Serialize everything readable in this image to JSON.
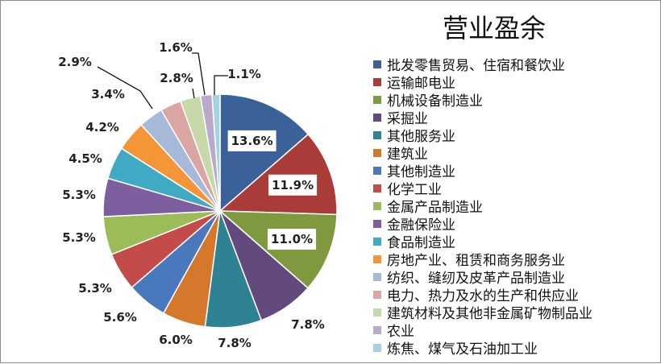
{
  "chart_data": {
    "type": "pie",
    "title": "营业盈余",
    "legend_position": "right",
    "slices": [
      {
        "label": "批发零售贸易、住宿和餐饮业",
        "value": 13.6,
        "display": "13.6%",
        "color": "#3a6198"
      },
      {
        "label": "运输邮电业",
        "value": 11.9,
        "display": "11.9%",
        "color": "#a93b39"
      },
      {
        "label": "机械设备制造业",
        "value": 11.0,
        "display": "11.0%",
        "color": "#7f9a3e"
      },
      {
        "label": "采掘业",
        "value": 7.8,
        "display": "7.8%",
        "color": "#624a7f"
      },
      {
        "label": "其他服务业",
        "value": 7.8,
        "display": "7.8%",
        "color": "#2f8294"
      },
      {
        "label": "建筑业",
        "value": 6.0,
        "display": "6.0%",
        "color": "#d6782b"
      },
      {
        "label": "其他制造业",
        "value": 5.6,
        "display": "5.6%",
        "color": "#4978bc"
      },
      {
        "label": "化学工业",
        "value": 5.3,
        "display": "5.3%",
        "color": "#c34c4a"
      },
      {
        "label": "金属产品制造业",
        "value": 5.3,
        "display": "5.3%",
        "color": "#9bbc59"
      },
      {
        "label": "金融保险业",
        "value": 5.3,
        "display": "5.3%",
        "color": "#7d5fa0"
      },
      {
        "label": "食品制造业",
        "value": 4.5,
        "display": "4.5%",
        "color": "#40aac5"
      },
      {
        "label": "房地产业、租赁和商务服务业",
        "value": 4.2,
        "display": "4.2%",
        "color": "#f49638"
      },
      {
        "label": "纺织、缝纫及皮革产品制造业",
        "value": 3.4,
        "display": "3.4%",
        "color": "#a6b9d9"
      },
      {
        "label": "电力、热力及水的生产和供应业",
        "value": 2.9,
        "display": "2.9%",
        "color": "#dba5a3"
      },
      {
        "label": "建筑材料及其他非金属矿物制品业",
        "value": 2.8,
        "display": "2.8%",
        "color": "#c7d9a8"
      },
      {
        "label": "农业",
        "value": 1.6,
        "display": "1.6%",
        "color": "#baa9cc"
      },
      {
        "label": "炼焦、煤气及石油加工业",
        "value": 1.1,
        "display": "1.1%",
        "color": "#a3d3e0"
      }
    ]
  }
}
